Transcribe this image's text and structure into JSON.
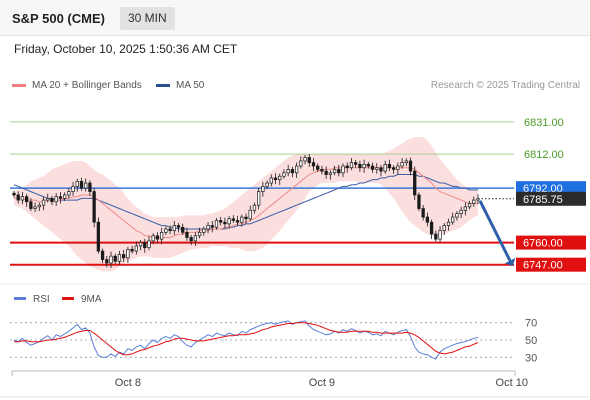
{
  "header": {
    "title": "S&P 500 (CME)",
    "timeframe": "30 MIN",
    "datetime": "Friday, October 10, 2025 1:50:36 AM CET"
  },
  "legend": {
    "items": [
      {
        "label": "MA 20 + Bollinger Bands",
        "color": "#f08080"
      },
      {
        "label": "MA 50",
        "color": "#2a4f8f"
      }
    ],
    "credit": "Research © 2025 Trading Central"
  },
  "chart_data": [
    {
      "type": "candlestick",
      "ylim": [
        6738,
        6845
      ],
      "current_price": 6785.75,
      "resistance_levels": [
        6831.0,
        6812.0,
        6792.0
      ],
      "support_levels": [
        6760.0,
        6747.0
      ],
      "level_labels": [
        "6831.00",
        "6812.00",
        "6792.00",
        "6785.75",
        "6760.00",
        "6747.00"
      ],
      "x_tick_labels": [
        "Oct 8",
        "Oct 9",
        "Oct 10"
      ],
      "x_tick_positions": [
        27,
        73,
        118
      ],
      "series": {
        "close": [
          6788,
          6785,
          6787,
          6784,
          6780,
          6781,
          6782,
          6785,
          6786,
          6784,
          6787,
          6786,
          6788,
          6790,
          6793,
          6796,
          6792,
          6795,
          6790,
          6772,
          6755,
          6750,
          6748,
          6752,
          6749,
          6753,
          6751,
          6756,
          6755,
          6758,
          6760,
          6757,
          6761,
          6764,
          6762,
          6766,
          6768,
          6767,
          6770,
          6769,
          6766,
          6763,
          6761,
          6764,
          6766,
          6768,
          6770,
          6769,
          6773,
          6772,
          6771,
          6774,
          6773,
          6772,
          6775,
          6774,
          6779,
          6782,
          6790,
          6793,
          6795,
          6798,
          6797,
          6799,
          6801,
          6803,
          6801,
          6805,
          6808,
          6810,
          6807,
          6805,
          6803,
          6802,
          6800,
          6801,
          6803,
          6801,
          6805,
          6804,
          6807,
          6806,
          6804,
          6806,
          6805,
          6803,
          6804,
          6802,
          6806,
          6804,
          6803,
          6805,
          6807,
          6808,
          6802,
          6788,
          6780,
          6775,
          6772,
          6765,
          6762,
          6767,
          6770,
          6772,
          6775,
          6777,
          6779,
          6781,
          6783,
          6785,
          6785.75
        ],
        "ma20": [
          6786,
          6786,
          6786,
          6785,
          6785,
          6785,
          6784,
          6784,
          6785,
          6785,
          6785,
          6785,
          6786,
          6786,
          6787,
          6787,
          6788,
          6788,
          6788,
          6787,
          6785,
          6783,
          6781,
          6779,
          6777,
          6775,
          6773,
          6771,
          6769,
          6767,
          6766,
          6764,
          6764,
          6763,
          6763,
          6763,
          6763,
          6763,
          6764,
          6765,
          6765,
          6766,
          6766,
          6766,
          6767,
          6767,
          6767,
          6768,
          6768,
          6768,
          6769,
          6769,
          6770,
          6771,
          6771,
          6772,
          6773,
          6774,
          6776,
          6778,
          6780,
          6782,
          6784,
          6786,
          6788,
          6790,
          6792,
          6794,
          6796,
          6798,
          6800,
          6801,
          6802,
          6803,
          6803,
          6803,
          6804,
          6804,
          6804,
          6804,
          6804,
          6804,
          6804,
          6804,
          6804,
          6804,
          6804,
          6804,
          6804,
          6804,
          6804,
          6804,
          6804,
          6804,
          6804,
          6803,
          6801,
          6799,
          6797,
          6795,
          6792,
          6790,
          6789,
          6788,
          6787,
          6786,
          6785,
          6784,
          6783,
          6783,
          6783
        ],
        "bb_upper": [
          6790,
          6791,
          6792,
          6794,
          6796,
          6797,
          6798,
          6799,
          6801,
          6803,
          6804,
          6805,
          6806,
          6807,
          6808,
          6808,
          6808,
          6807,
          6805,
          6803,
          6801,
          6800,
          6798,
          6796,
          6794,
          6792,
          6789,
          6786,
          6783,
          6781,
          6779,
          6777,
          6776,
          6775,
          6775,
          6775,
          6775,
          6775,
          6775,
          6775,
          6776,
          6776,
          6776,
          6776,
          6776,
          6776,
          6777,
          6777,
          6778,
          6779,
          6780,
          6782,
          6784,
          6786,
          6788,
          6790,
          6792,
          6794,
          6796,
          6798,
          6800,
          6802,
          6804,
          6806,
          6808,
          6810,
          6811,
          6812,
          6812,
          6812,
          6812,
          6812,
          6812,
          6812,
          6812,
          6812,
          6812,
          6812,
          6812,
          6812,
          6812,
          6812,
          6812,
          6812,
          6812,
          6812,
          6812,
          6812,
          6813,
          6814,
          6815,
          6817,
          6818,
          6820,
          6821,
          6822,
          6822,
          6822,
          6820,
          6817,
          6813,
          6809,
          6806,
          6803,
          6800,
          6797,
          6795,
          6793,
          6792,
          6791,
          6791
        ],
        "bb_lower": [
          6782,
          6781,
          6780,
          6778,
          6776,
          6774,
          6772,
          6770,
          6768,
          6766,
          6764,
          6762,
          6760,
          6758,
          6755,
          6752,
          6750,
          6748,
          6746,
          6745,
          6744,
          6743,
          6743,
          6743,
          6744,
          6746,
          6748,
          6749,
          6750,
          6751,
          6752,
          6752,
          6752,
          6751,
          6751,
          6751,
          6751,
          6751,
          6752,
          6753,
          6754,
          6755,
          6756,
          6756,
          6757,
          6757,
          6757,
          6758,
          6758,
          6758,
          6758,
          6757,
          6757,
          6757,
          6756,
          6755,
          6755,
          6755,
          6756,
          6757,
          6759,
          6762,
          6764,
          6767,
          6770,
          6773,
          6776,
          6779,
          6782,
          6786,
          6790,
          6792,
          6794,
          6795,
          6795,
          6795,
          6795,
          6796,
          6796,
          6796,
          6796,
          6796,
          6795,
          6795,
          6795,
          6795,
          6795,
          6794,
          6792,
          6789,
          6786,
          6782,
          6778,
          6775,
          6772,
          6770,
          6768,
          6766,
          6765,
          6764,
          6764,
          6764,
          6765,
          6766,
          6767,
          6768,
          6769,
          6771,
          6773,
          6775,
          6776
        ],
        "ma50": [
          6794,
          6793,
          6792,
          6791,
          6790,
          6789,
          6788,
          6787,
          6786,
          6786,
          6785,
          6785,
          6785,
          6785,
          6785,
          6785,
          6786,
          6786,
          6786,
          6786,
          6785,
          6784,
          6783,
          6782,
          6781,
          6780,
          6779,
          6778,
          6777,
          6776,
          6775,
          6774,
          6773,
          6772,
          6771,
          6770,
          6770,
          6769,
          6769,
          6768,
          6768,
          6768,
          6768,
          6768,
          6768,
          6768,
          6768,
          6768,
          6768,
          6768,
          6768,
          6769,
          6769,
          6770,
          6770,
          6771,
          6771,
          6772,
          6773,
          6774,
          6775,
          6776,
          6777,
          6778,
          6779,
          6780,
          6781,
          6782,
          6783,
          6784,
          6785,
          6786,
          6787,
          6788,
          6789,
          6790,
          6791,
          6792,
          6793,
          6793,
          6794,
          6794,
          6795,
          6795,
          6796,
          6797,
          6797,
          6798,
          6798,
          6799,
          6799,
          6800,
          6800,
          6800,
          6800,
          6800,
          6799,
          6799,
          6798,
          6797,
          6796,
          6795,
          6795,
          6794,
          6793,
          6793,
          6792,
          6792,
          6791,
          6791,
          6791
        ]
      }
    },
    {
      "type": "line",
      "legend": [
        {
          "label": "RSI",
          "color": "#5b7fd6"
        },
        {
          "label": "9MA",
          "color": "#e01010"
        }
      ],
      "ylim": [
        20,
        80
      ],
      "y_ticks": [
        70,
        50,
        30
      ],
      "series": [
        {
          "name": "RSI",
          "values": [
            50,
            48,
            52,
            47,
            44,
            46,
            48,
            52,
            55,
            50,
            56,
            54,
            57,
            60,
            64,
            68,
            62,
            64,
            58,
            42,
            32,
            30,
            30,
            34,
            31,
            36,
            34,
            40,
            38,
            42,
            44,
            40,
            46,
            50,
            47,
            52,
            54,
            52,
            56,
            54,
            48,
            44,
            42,
            47,
            50,
            53,
            56,
            54,
            58,
            56,
            55,
            58,
            56,
            55,
            60,
            58,
            62,
            64,
            66,
            68,
            69,
            70,
            68,
            70,
            71,
            72,
            68,
            70,
            71,
            72,
            66,
            62,
            60,
            58,
            56,
            57,
            60,
            58,
            62,
            60,
            63,
            61,
            58,
            60,
            59,
            56,
            57,
            55,
            60,
            58,
            56,
            59,
            61,
            62,
            54,
            42,
            36,
            34,
            33,
            30,
            28,
            36,
            40,
            42,
            44,
            46,
            47,
            48,
            50,
            52,
            53
          ]
        },
        {
          "name": "9MA",
          "values": [
            48,
            48,
            49,
            49,
            48,
            48,
            48,
            49,
            50,
            50,
            51,
            52,
            53,
            55,
            57,
            59,
            60,
            61,
            61,
            58,
            54,
            50,
            46,
            42,
            38,
            35,
            33,
            33,
            34,
            36,
            38,
            39,
            41,
            43,
            44,
            46,
            48,
            49,
            51,
            52,
            52,
            51,
            50,
            49,
            49,
            49,
            50,
            51,
            52,
            53,
            54,
            55,
            55,
            56,
            56,
            56,
            57,
            58,
            60,
            62,
            63,
            65,
            66,
            67,
            68,
            69,
            69,
            70,
            70,
            70,
            69,
            68,
            67,
            65,
            63,
            61,
            60,
            59,
            59,
            59,
            60,
            60,
            60,
            60,
            60,
            59,
            59,
            58,
            58,
            58,
            58,
            58,
            58,
            59,
            58,
            56,
            53,
            49,
            45,
            41,
            37,
            35,
            34,
            35,
            36,
            38,
            40,
            42,
            43,
            45,
            47
          ]
        }
      ]
    }
  ]
}
